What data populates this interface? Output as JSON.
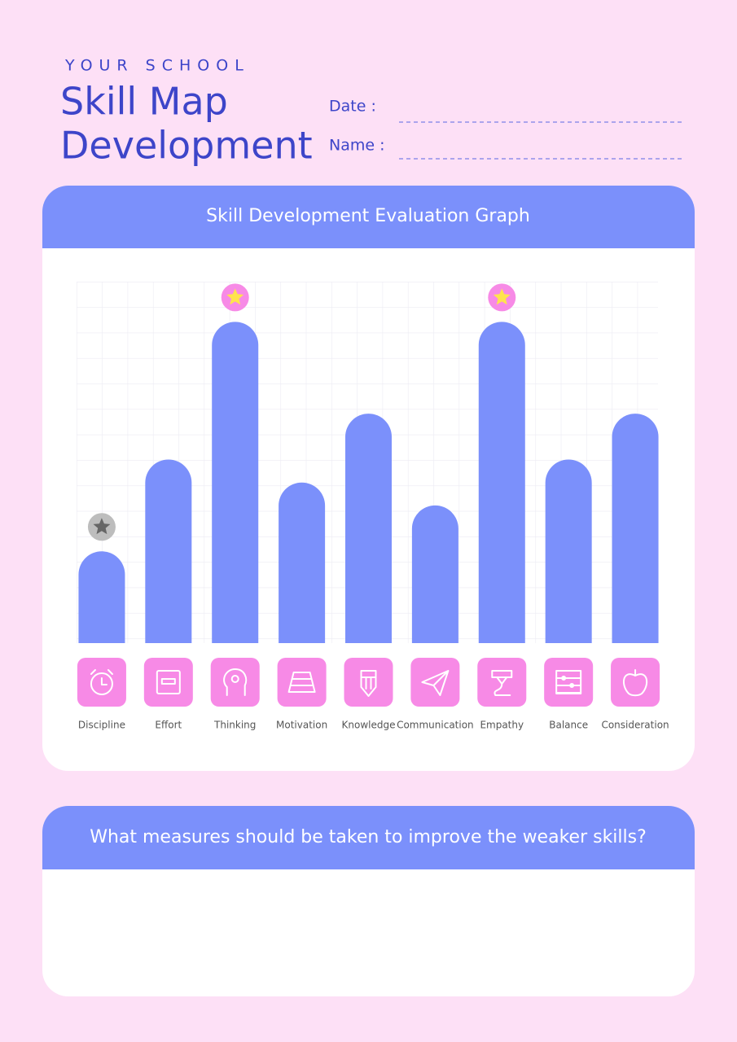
{
  "header": {
    "school": "YOUR SCHOOL",
    "title_line1": "Skill Map",
    "title_line2": "Development",
    "date_label": "Date :",
    "name_label": "Name :"
  },
  "chart_data": {
    "type": "bar",
    "title": "Skill Development Evaluation Graph",
    "categories": [
      "Discipline",
      "Effort",
      "Thinking",
      "Motivation",
      "Knowledge",
      "Communication",
      "Empathy",
      "Balance",
      "Consideration"
    ],
    "values": [
      4,
      8,
      14,
      7,
      10,
      6,
      14,
      8,
      10
    ],
    "color": "#7b90fb",
    "ylim": [
      0,
      16
    ]
  },
  "question": {
    "text": "What measures should be taken to improve the weaker skills?"
  }
}
